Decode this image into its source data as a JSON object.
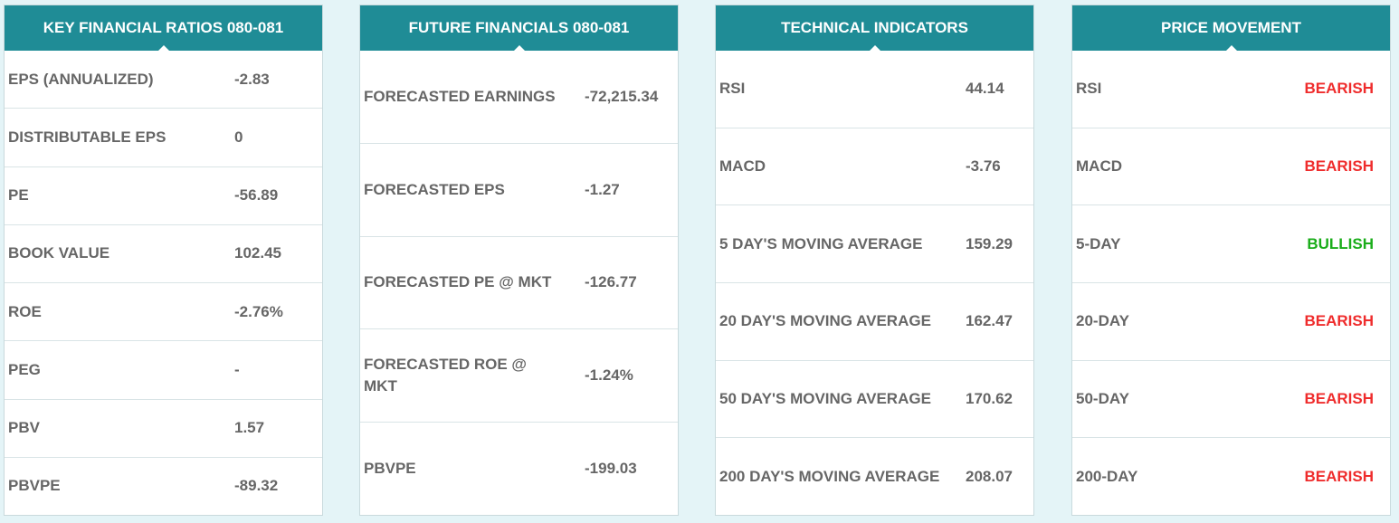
{
  "key_financial_ratios": {
    "title": "KEY FINANCIAL RATIOS 080-081",
    "rows": [
      {
        "label": "EPS (ANNUALIZED)",
        "value": "-2.83"
      },
      {
        "label": "DISTRIBUTABLE EPS",
        "value": "0"
      },
      {
        "label": "PE",
        "value": "-56.89"
      },
      {
        "label": "BOOK VALUE",
        "value": "102.45"
      },
      {
        "label": "ROE",
        "value": "-2.76%"
      },
      {
        "label": "PEG",
        "value": "-"
      },
      {
        "label": "PBV",
        "value": "1.57"
      },
      {
        "label": "PBVPE",
        "value": "-89.32"
      }
    ]
  },
  "future_financials": {
    "title": "FUTURE FINANCIALS 080-081",
    "rows": [
      {
        "label": "FORECASTED EARNINGS",
        "value": "-72,215.34"
      },
      {
        "label": "FORECASTED EPS",
        "value": "-1.27"
      },
      {
        "label": "FORECASTED PE @ MKT",
        "value": "-126.77"
      },
      {
        "label": "FORECASTED ROE @ MKT",
        "value": "-1.24%"
      },
      {
        "label": "PBVPE",
        "value": "-199.03"
      }
    ]
  },
  "technical_indicators": {
    "title": "TECHNICAL INDICATORS",
    "rows": [
      {
        "label": "RSI",
        "value": "44.14"
      },
      {
        "label": "MACD",
        "value": "-3.76"
      },
      {
        "label": "5 DAY'S MOVING AVERAGE",
        "value": "159.29"
      },
      {
        "label": "20 DAY'S MOVING AVERAGE",
        "value": "162.47"
      },
      {
        "label": "50 DAY'S MOVING AVERAGE",
        "value": "170.62"
      },
      {
        "label": "200 DAY'S MOVING AVERAGE",
        "value": "208.07"
      }
    ]
  },
  "price_movement": {
    "title": "PRICE MOVEMENT",
    "rows": [
      {
        "label": "RSI",
        "value": "BEARISH"
      },
      {
        "label": "MACD",
        "value": "BEARISH"
      },
      {
        "label": "5-DAY",
        "value": "BULLISH"
      },
      {
        "label": "20-DAY",
        "value": "BEARISH"
      },
      {
        "label": "50-DAY",
        "value": "BEARISH"
      },
      {
        "label": "200-DAY",
        "value": "BEARISH"
      }
    ]
  },
  "colors": {
    "header_bg": "#1f8c96",
    "bearish": "#ef2c2c",
    "bullish": "#1aad1a"
  }
}
